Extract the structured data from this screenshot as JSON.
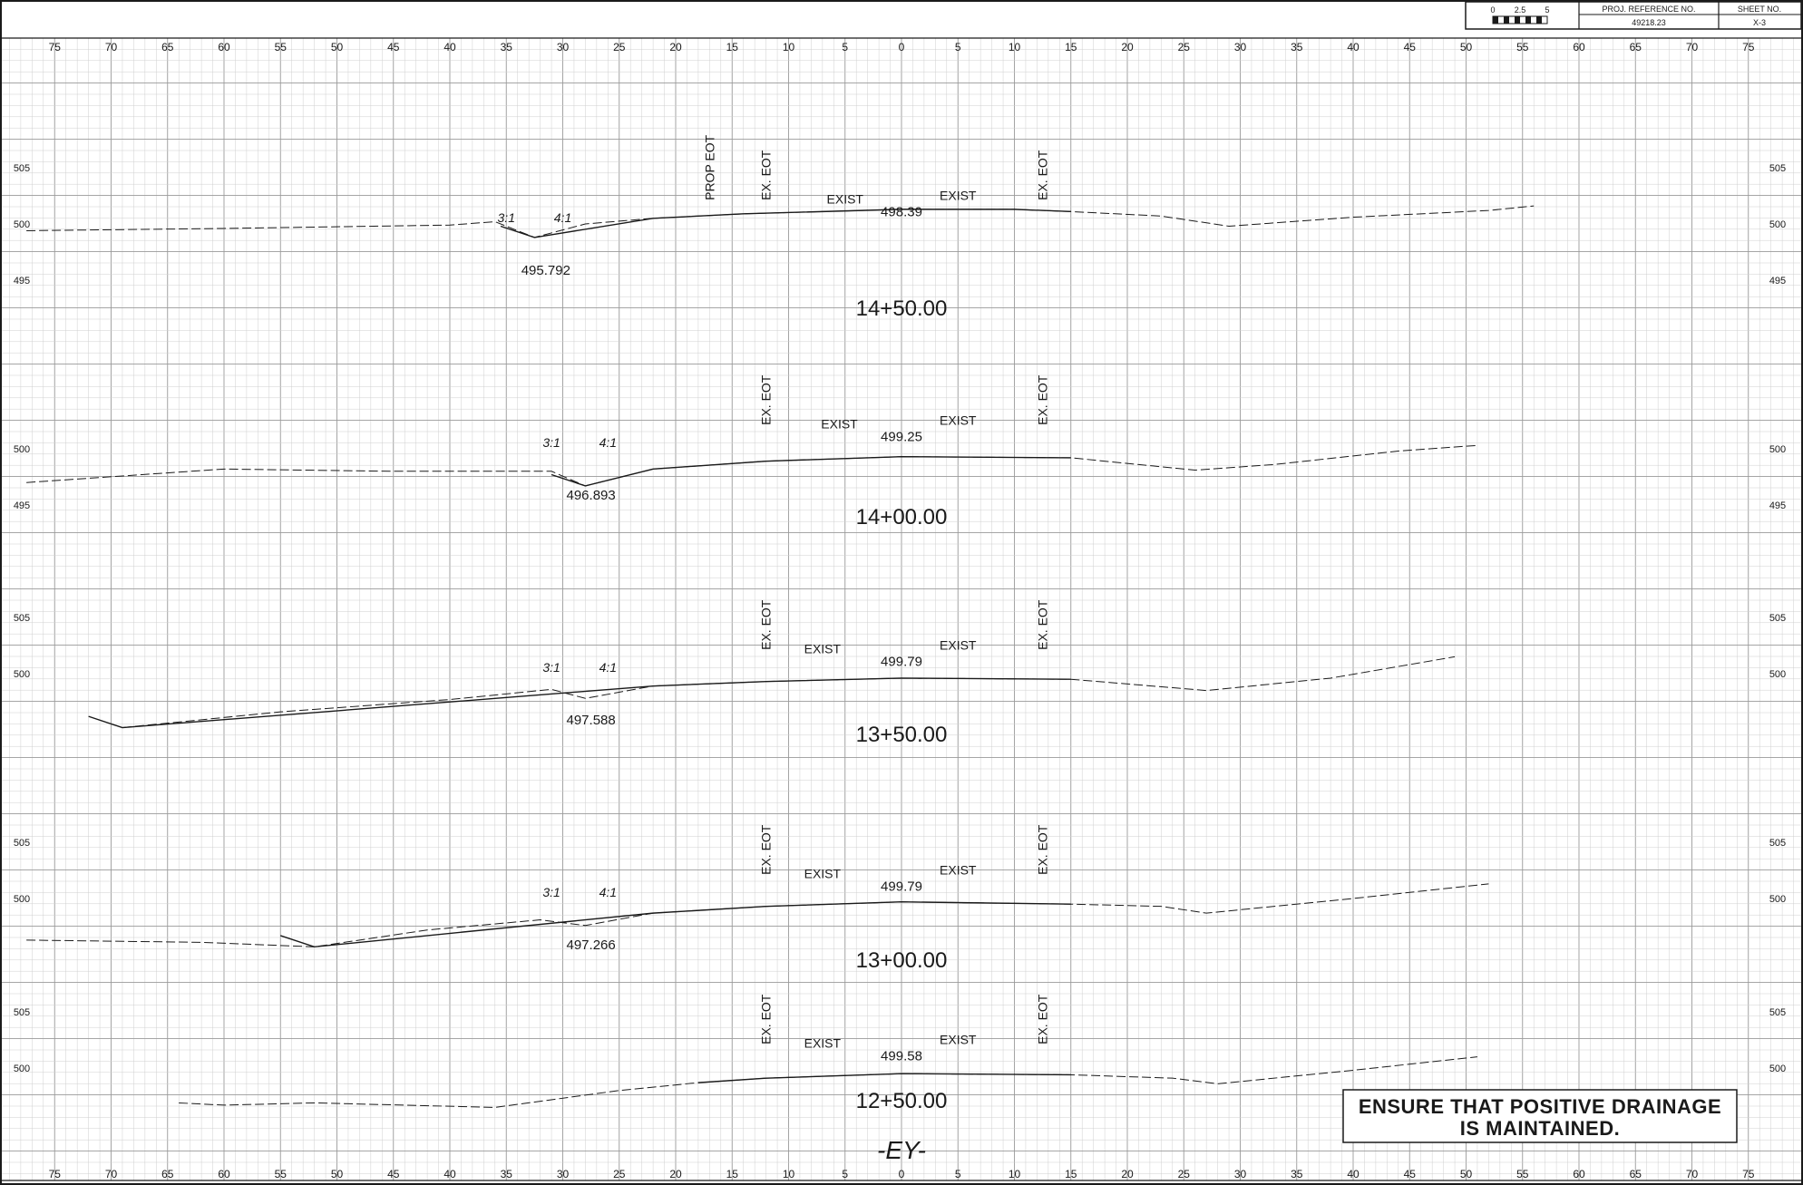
{
  "title_block": {
    "scale_labels": [
      "0",
      "2.5",
      "5"
    ],
    "proj_ref_label": "PROJ. REFERENCE NO.",
    "proj_ref_value": "49218.23",
    "sheet_label": "SHEET NO.",
    "sheet_value": "X-3"
  },
  "offset_ticks": [
    "75",
    "70",
    "65",
    "60",
    "55",
    "50",
    "45",
    "40",
    "35",
    "30",
    "25",
    "20",
    "15",
    "10",
    "5",
    "0",
    "5",
    "10",
    "15",
    "20",
    "25",
    "30",
    "35",
    "40",
    "45",
    "50",
    "55",
    "60",
    "65",
    "70",
    "75"
  ],
  "sections": [
    {
      "station": "14+50.00",
      "elev_labels": [
        {
          "value": "505",
          "elev": 505
        },
        {
          "value": "500",
          "elev": 500
        },
        {
          "value": "495",
          "elev": 495
        }
      ],
      "ditch_elev": "495.792",
      "centerline_elev": "498.39",
      "slope_left": "3:1",
      "slope_right": "4:1",
      "exist_labels": [
        "EXIST",
        "EXIST"
      ],
      "eot_labels": [
        "PROP EOT",
        "EX. EOT",
        "EX. EOT"
      ]
    },
    {
      "station": "14+00.00",
      "elev_labels": [
        {
          "value": "500",
          "elev": 500
        },
        {
          "value": "495",
          "elev": 495
        }
      ],
      "ditch_elev": "496.893",
      "centerline_elev": "499.25",
      "slope_left": "3:1",
      "slope_right": "4:1",
      "exist_labels": [
        "EXIST",
        "EXIST"
      ],
      "eot_labels": [
        "EX. EOT",
        "EX. EOT"
      ]
    },
    {
      "station": "13+50.00",
      "elev_labels": [
        {
          "value": "505",
          "elev": 505
        },
        {
          "value": "500",
          "elev": 500
        }
      ],
      "ditch_elev": "497.588",
      "centerline_elev": "499.79",
      "slope_left": "3:1",
      "slope_right": "4:1",
      "exist_labels": [
        "EXIST",
        "EXIST"
      ],
      "eot_labels": [
        "EX. EOT",
        "EX. EOT"
      ]
    },
    {
      "station": "13+00.00",
      "elev_labels": [
        {
          "value": "505",
          "elev": 505
        },
        {
          "value": "500",
          "elev": 500
        }
      ],
      "ditch_elev": "497.266",
      "centerline_elev": "499.79",
      "slope_left": "3:1",
      "slope_right": "4:1",
      "exist_labels": [
        "EXIST",
        "EXIST"
      ],
      "eot_labels": [
        "EX. EOT",
        "EX. EOT"
      ]
    },
    {
      "station": "12+50.00",
      "elev_labels": [
        {
          "value": "505",
          "elev": 505
        },
        {
          "value": "500",
          "elev": 500
        }
      ],
      "ditch_elev": "",
      "centerline_elev": "499.58",
      "slope_left": "",
      "slope_right": "",
      "exist_labels": [
        "EXIST",
        "EXIST"
      ],
      "eot_labels": [
        "EX. EOT",
        "EX. EOT"
      ]
    }
  ],
  "note": {
    "line1": "ENSURE THAT POSITIVE DRAINAGE",
    "line2": "IS MAINTAINED."
  },
  "alignment_label": "-EY-",
  "colors": {
    "grid_minor": "#cfcfcf",
    "grid_major": "#9a9a9a",
    "ink": "#1a1a1a",
    "paper": "#ffffff"
  }
}
